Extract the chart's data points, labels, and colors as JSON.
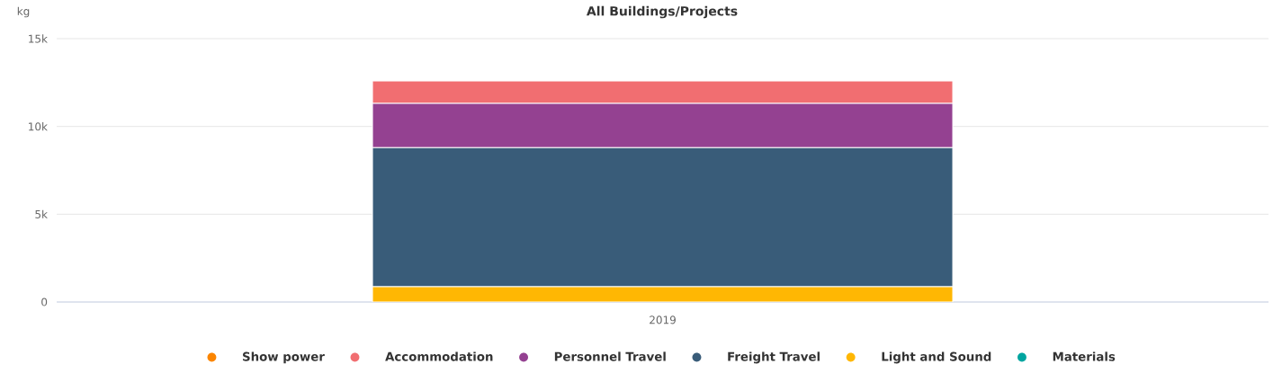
{
  "chart_data": {
    "type": "bar",
    "title": "All Buildings/Projects",
    "ylabel": "kg",
    "categories": [
      "2019"
    ],
    "stacked": true,
    "series": [
      {
        "name": "Materials",
        "color": "#00a5a0",
        "values": [
          0
        ]
      },
      {
        "name": "Light and Sound",
        "color": "#ffb703",
        "values": [
          870
        ]
      },
      {
        "name": "Freight Travel",
        "color": "#395c79",
        "values": [
          7920
        ]
      },
      {
        "name": "Personnel Travel",
        "color": "#944191",
        "values": [
          2520
        ]
      },
      {
        "name": "Accommodation",
        "color": "#f16e71",
        "values": [
          1280
        ]
      },
      {
        "name": "Show power",
        "color": "#fb8500",
        "values": [
          0
        ]
      }
    ],
    "ylim": [
      0,
      15000
    ],
    "yticks": [
      0,
      {
        "value": 5000,
        "label": "5k"
      },
      {
        "value": 10000,
        "label": "10k"
      },
      {
        "value": 15000,
        "label": "15k"
      }
    ],
    "grid": "y",
    "legend": "bottom"
  }
}
